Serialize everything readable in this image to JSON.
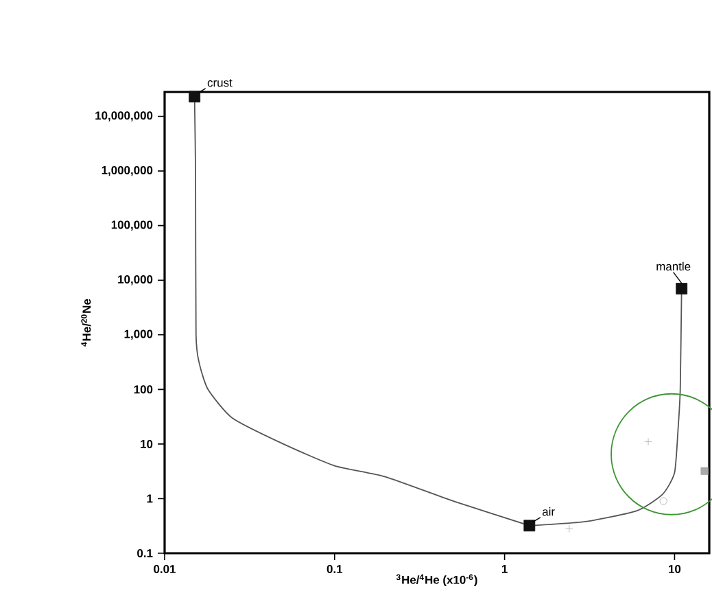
{
  "chart_data": {
    "type": "scatter",
    "xlabel": "$^{3}$He/$^{4}$He (x10$^{-6}$)",
    "ylabel": "$^{4}$He/$^{20}$Ne",
    "log": "xy",
    "line_style": "solid",
    "xlim": [
      0.01,
      16
    ],
    "ylim": [
      0.1,
      28000000
    ],
    "xticks": [
      0.01,
      0.1,
      1,
      10
    ],
    "yticks": [
      0.1,
      1,
      10,
      100,
      {
        "value": 1000,
        "label": "1,000"
      },
      {
        "value": 10000,
        "label": "10,000"
      },
      {
        "value": 100000,
        "label": "100,000"
      },
      {
        "value": 1000000,
        "label": "1,000,000"
      },
      {
        "value": 10000000,
        "label": "10,000,000"
      }
    ],
    "series": [
      {
        "type": "line",
        "color": "#555555",
        "marker": "none",
        "x": [
          0.015,
          0.0152,
          0.0153,
          0.016,
          0.018,
          0.025,
          0.05,
          0.1,
          0.2,
          0.5,
          1.4
        ],
        "values": [
          23000000,
          1000000,
          1000,
          300,
          100,
          30,
          10,
          4,
          2.5,
          0.9,
          0.32
        ]
      },
      {
        "type": "line",
        "color": "#555555",
        "marker": "none",
        "x": [
          1.4,
          3,
          6,
          8.5,
          10,
          10.5,
          10.8,
          11
        ],
        "values": [
          0.32,
          0.38,
          0.6,
          1.2,
          3,
          20,
          100,
          7000
        ]
      },
      {
        "color": "#111111",
        "marker": "square",
        "x": [
          0.015,
          1.4,
          11
        ],
        "values": [
          23000000,
          0.32,
          7000
        ]
      },
      {
        "color": "#aaaaaa",
        "marker": "cross",
        "x": [
          7
        ],
        "values": [
          11
        ]
      },
      {
        "color": "#aaaaaa",
        "marker": "cross",
        "x": [
          2.4
        ],
        "values": [
          0.28
        ]
      },
      {
        "color": "#aaaaaa",
        "marker": "circle",
        "x": [
          8.6
        ],
        "values": [
          0.9
        ]
      },
      {
        "color": "#aaaaaa",
        "marker": "square",
        "x": [
          15
        ],
        "values": [
          3.2
        ]
      }
    ],
    "annotations": [
      {
        "text": "crust",
        "x": 0.015,
        "y": 23000000
      },
      {
        "text": "air",
        "x": 1.4,
        "y": 0.32
      },
      {
        "text": "mantle",
        "x": 11,
        "y": 7000
      }
    ]
  }
}
